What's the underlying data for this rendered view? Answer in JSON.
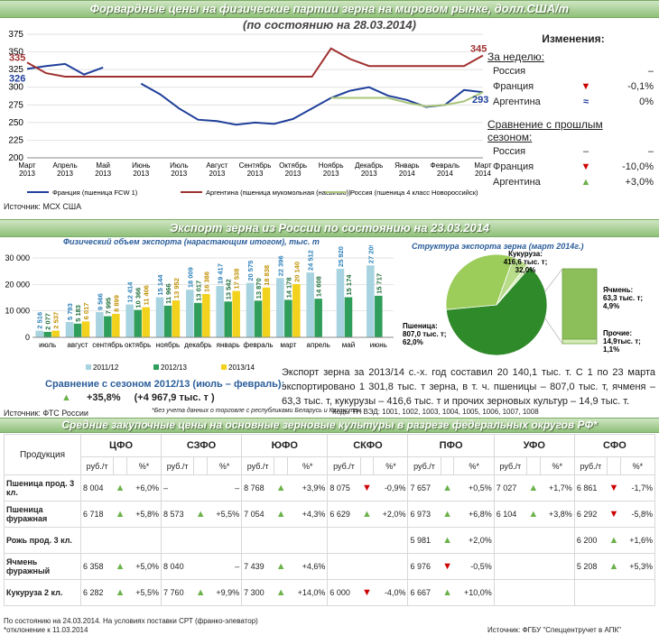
{
  "section1": {
    "title": "Форвардные цены на физические партии зерна на мировом рынке, долл.США/т",
    "subtitle": "(по состоянию на 28.03.2014)",
    "source": "Источник: МСХ США"
  },
  "chart_data": [
    {
      "type": "line",
      "x": [
        "Март 2013",
        "",
        "Апрель 2013",
        "",
        "Май 2013",
        "",
        "Июнь 2013",
        "",
        "Июль 2013",
        "",
        "Август 2013",
        "",
        "Сентябрь 2013",
        "",
        "Октябрь 2013",
        "",
        "Ноябрь 2013",
        "",
        "Декабрь 2013",
        "",
        "Январь 2014",
        "",
        "Февраль 2014",
        "",
        "Март 2014"
      ],
      "ylim": [
        200,
        375
      ],
      "yticks": [
        200,
        225,
        250,
        275,
        300,
        325,
        350,
        375
      ],
      "series": [
        {
          "name": "Франция (пшеница FCW 1)",
          "color": "#1f3f9a",
          "values": [
            326,
            330,
            333,
            318,
            328,
            null,
            305,
            290,
            270,
            254,
            252,
            247,
            250,
            248,
            255,
            270,
            285,
            295,
            300,
            288,
            282,
            272,
            275,
            296,
            293
          ]
        },
        {
          "name": "Аргентина (пшеница мукомольная (насыпью))",
          "color": "#a03030",
          "values": [
            335,
            320,
            315,
            315,
            315,
            315,
            315,
            315,
            315,
            315,
            315,
            315,
            315,
            315,
            315,
            315,
            355,
            340,
            330,
            330,
            330,
            330,
            330,
            330,
            345
          ]
        },
        {
          "name": "Россия (пшеница 4 класс Новороссийск)",
          "color": "#a9c47a",
          "values": [
            null,
            null,
            null,
            null,
            null,
            null,
            null,
            null,
            null,
            null,
            null,
            null,
            null,
            null,
            null,
            null,
            285,
            285,
            285,
            285,
            278,
            273,
            275,
            280,
            293
          ]
        }
      ],
      "labels": {
        "fr_start": "326",
        "ar_start": "335",
        "ar_end": "345",
        "fr_end": "293"
      }
    },
    {
      "type": "bar",
      "title": "Физический объем экспорта (нарастающим итогом), тыс. т",
      "categories": [
        "июль",
        "август",
        "сентябрь",
        "октябрь",
        "ноябрь",
        "декабрь",
        "январь",
        "февраль",
        "март",
        "апрель",
        "май",
        "июнь"
      ],
      "ylim": [
        0,
        30000
      ],
      "yticks": [
        0,
        10000,
        20000,
        30000
      ],
      "series": [
        {
          "name": "2011/12",
          "color": "#a8d3e0",
          "values": [
            2516,
            5793,
            9566,
            12414,
            15144,
            18009,
            19417,
            20575,
            22396,
            24512,
            25920,
            27209
          ]
        },
        {
          "name": "2012/13",
          "color": "#2f9e5a",
          "values": [
            2077,
            5183,
            7995,
            10366,
            11966,
            13017,
            13542,
            13870,
            14178,
            14608,
            15174,
            15717
          ]
        },
        {
          "name": "2013/14",
          "color": "#f2d21c",
          "values": [
            2537,
            6017,
            8899,
            11406,
            13952,
            16386,
            17538,
            18838,
            20140,
            null,
            null,
            null
          ]
        }
      ],
      "value_labels": {
        "2011/12": [
          "2 516",
          "5 793",
          "9 566",
          "12 414",
          "15 144",
          "18 009",
          "19 417",
          "20 575",
          "22 396",
          "24 512",
          "25 920",
          "27 209"
        ],
        "2012/13": [
          "2 077",
          "5 183",
          "7 995",
          "10 366",
          "11 966",
          "13 017",
          "13 542",
          "13 870",
          "14 178",
          "14 608",
          "15 174",
          "15 717"
        ],
        "2013/14": [
          "2 537",
          "6 017",
          "8 899",
          "11 406",
          "13 952",
          "16 386",
          "17 538",
          "18 838",
          "20 140"
        ]
      }
    },
    {
      "type": "pie",
      "title": "Структура экспорта зерна (март 2014г.)",
      "slices": [
        {
          "name": "Пшеница",
          "value": 807.0,
          "percent": 62.0,
          "label1": "Пшеница:",
          "label2": "807,0 тыс. т;",
          "label3": "62,0%"
        },
        {
          "name": "Кукуруза",
          "value": 416.6,
          "percent": 32.0,
          "label1": "Кукуруза:",
          "label2": "416,6 тыс. т;",
          "label3": "32,0%"
        },
        {
          "name": "Ячмень",
          "value": 63.3,
          "percent": 4.9,
          "label1": "Ячмень:",
          "label2": "63,3 тыс. т;",
          "label3": "4,9%"
        },
        {
          "name": "Прочие",
          "value": 14.9,
          "percent": 1.1,
          "label1": "Прочие:",
          "label2": "14,9тыс. т;",
          "label3": "1,1%"
        }
      ]
    }
  ],
  "changes": {
    "title": "Изменения:",
    "week_title": "За неделю:",
    "week": [
      {
        "country": "Россия",
        "value": "–",
        "dir": "none"
      },
      {
        "country": "Франция",
        "value": "-0,1%",
        "dir": "down"
      },
      {
        "country": "Аргентина",
        "value": "0%",
        "dir": "eq"
      }
    ],
    "season_title1": "Сравнение с прошлым",
    "season_title2": "сезоном:",
    "season": [
      {
        "country": "Россия",
        "dash1": "–",
        "value": "–",
        "dir": "none"
      },
      {
        "country": "Франция",
        "value": "-10,0%",
        "dir": "down"
      },
      {
        "country": "Аргентина",
        "value": "+3,0%",
        "dir": "up"
      }
    ]
  },
  "section2": {
    "title": "Экспорт зерна из России по состоянию на 23.03.2014",
    "season_compare": "Сравнение с сезоном 2012/13 (июль – февраль):",
    "pct": "+35,8%",
    "abs": "(+4 967,9 тыс. т )",
    "note": "*Без учета данных о торговле с республиками Беларусь и Казахстан.",
    "source": "Источник: ФТС России",
    "codes": "Коды ТН ВЭД: 1001, 1002, 1003, 1004, 1005, 1006, 1007, 1008",
    "text": "Экспорт зерна за 2013/14 с.-х. год составил 20 140,1 тыс. т. С 1 по 23 марта экспортировано 1 301,8 тыс. т зерна, в т. ч. пшеницы – 807,0 тыс. т, ячменя – 63,3 тыс. т, кукурузы – 416,6 тыс. т и прочих зерновых культур – 14,9 тыс. т."
  },
  "section3": {
    "title": "Средние закупочные цены на основные зерновые культуры в разрезе федеральных округов РФ*",
    "product_header": "Продукция",
    "unit_rub": "руб./т",
    "unit_pct": "%*",
    "districts": [
      "ЦФО",
      "СЗФО",
      "ЮФО",
      "СКФО",
      "ПФО",
      "УФО",
      "СФО"
    ],
    "rows": [
      {
        "name": "Пшеница прод. 3 кл.",
        "cells": [
          [
            "8 004",
            "up",
            "+6,0%"
          ],
          [
            "–",
            "none",
            "–"
          ],
          [
            "8 768",
            "up",
            "+3,9%"
          ],
          [
            "8 075",
            "down",
            "-0,9%"
          ],
          [
            "7 657",
            "up",
            "+0,5%"
          ],
          [
            "7 027",
            "up",
            "+1,7%"
          ],
          [
            "6 861",
            "down",
            "-1,7%"
          ]
        ]
      },
      {
        "name": "Пшеница фуражная",
        "cells": [
          [
            "6 718",
            "up",
            "+5,8%"
          ],
          [
            "8 573",
            "up",
            "+5,5%"
          ],
          [
            "7 054",
            "up",
            "+4,3%"
          ],
          [
            "6 629",
            "up",
            "+2,0%"
          ],
          [
            "6 973",
            "up",
            "+6,8%"
          ],
          [
            "6 104",
            "up",
            "+3,8%"
          ],
          [
            "6 292",
            "down",
            "-5,8%"
          ]
        ]
      },
      {
        "name": "Рожь прод. 3 кл.",
        "cells": [
          [
            "",
            "",
            ""
          ],
          [
            "",
            "",
            ""
          ],
          [
            "",
            "",
            ""
          ],
          [
            "",
            "",
            ""
          ],
          [
            "5 981",
            "up",
            "+2,0%"
          ],
          [
            "",
            "",
            ""
          ],
          [
            "6 200",
            "up",
            "+1,6%"
          ]
        ]
      },
      {
        "name": "Ячмень фуражный",
        "cells": [
          [
            "6 358",
            "up",
            "+5,0%"
          ],
          [
            "8 040",
            "none",
            "–"
          ],
          [
            "7 439",
            "up",
            "+4,6%"
          ],
          [
            "",
            "",
            ""
          ],
          [
            "6 976",
            "down",
            "-0,5%"
          ],
          [
            "",
            "",
            ""
          ],
          [
            "5 208",
            "up",
            "+5,3%"
          ]
        ]
      },
      {
        "name": "Кукуруза 2 кл.",
        "cells": [
          [
            "6 282",
            "up",
            "+5,5%"
          ],
          [
            "7 760",
            "up",
            "+9,9%"
          ],
          [
            "7 300",
            "up",
            "+14,0%"
          ],
          [
            "6 000",
            "down",
            "-4,0%"
          ],
          [
            "6 667",
            "up",
            "+10,0%"
          ],
          [
            "",
            "",
            ""
          ],
          [
            "",
            "",
            ""
          ]
        ]
      }
    ],
    "footnote1": "По состоянию на 24.03.2014. На условиях поставки СРТ (франко-элеватор)",
    "footnote2": "*отклонение к 11.03.2014",
    "source": "Источник: ФГБУ \"Спеццентручет в АПК\""
  }
}
